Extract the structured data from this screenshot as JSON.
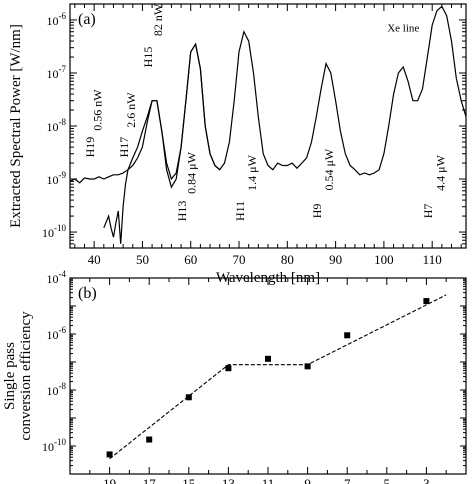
{
  "chart_data": [
    {
      "type": "line",
      "panel_label": "(a)",
      "xlabel": "Wavelength [nm]",
      "ylabel": "Extracted Spectral Power [W/nm]",
      "xlim": [
        35,
        117
      ],
      "ylim": [
        5e-11,
        2e-06
      ],
      "y_scale": "log",
      "x_ticks": [
        40,
        50,
        60,
        70,
        80,
        90,
        100,
        110
      ],
      "y_ticks": [
        {
          "value": 1e-10,
          "label": "10-10"
        },
        {
          "value": 1e-09,
          "label": "10-9"
        },
        {
          "value": 1e-08,
          "label": "10-8"
        },
        {
          "value": 1e-07,
          "label": "10-7"
        },
        {
          "value": 1e-06,
          "label": "10-6"
        }
      ],
      "grid": false,
      "series": [
        {
          "x": [
            35,
            36,
            37,
            38,
            39,
            40,
            41,
            42,
            43,
            44,
            45,
            46,
            47,
            48,
            49,
            50,
            51,
            52,
            53,
            54,
            55,
            56,
            57,
            58,
            59,
            60,
            61,
            62,
            63,
            64,
            65,
            66,
            67,
            68,
            69,
            70,
            71,
            72,
            73,
            74,
            75,
            76,
            77,
            78,
            79,
            80,
            81,
            82,
            83,
            84,
            85,
            86,
            87,
            88,
            89,
            90,
            91,
            92,
            93,
            94,
            95,
            96,
            97,
            98,
            99,
            100,
            101,
            102,
            103,
            104,
            105,
            106,
            107,
            108,
            109,
            110,
            111,
            112,
            113,
            114,
            115,
            116,
            117
          ],
          "y": [
            9e-10,
            1e-09,
            8.5e-10,
            1.05e-09,
            1e-09,
            1e-09,
            1.1e-09,
            1e-09,
            1.1e-09,
            1.2e-09,
            1.2e-09,
            1.3e-09,
            1.5e-09,
            1.8e-09,
            2.5e-09,
            4e-09,
            1.2e-08,
            3e-08,
            3e-08,
            8e-09,
            2e-09,
            1e-09,
            1.3e-09,
            4e-09,
            3e-08,
            2.5e-07,
            3.5e-07,
            1.2e-07,
            1e-08,
            3e-09,
            1.8e-09,
            1.5e-09,
            2e-09,
            5e-09,
            3e-08,
            2.5e-07,
            6e-07,
            4e-07,
            1e-07,
            1.5e-08,
            3e-09,
            1.8e-09,
            1.5e-09,
            2e-09,
            1.8e-09,
            1.8e-09,
            2e-09,
            1.6e-09,
            2e-09,
            2.5e-09,
            5e-09,
            1.5e-08,
            5e-08,
            1.5e-07,
            1e-07,
            3e-08,
            8e-09,
            3e-09,
            1.8e-09,
            1.5e-09,
            1.2e-09,
            1.3e-09,
            1.2e-09,
            1.3e-09,
            1.5e-09,
            3e-09,
            1e-08,
            4e-08,
            1e-07,
            1.3e-07,
            7e-08,
            3e-08,
            3e-08,
            5e-08,
            2e-07,
            8e-07,
            1.5e-06,
            1.8e-06,
            1.2e-06,
            4e-07,
            8e-08,
            3e-08,
            1.5e-08
          ]
        },
        {
          "x": [
            42,
            43,
            43.5,
            44,
            44.5,
            45,
            45.5,
            46,
            46.5,
            47,
            48,
            49,
            50,
            51,
            52,
            53,
            54,
            55,
            56,
            57,
            58,
            59,
            60,
            61,
            62,
            63,
            64,
            65,
            66
          ],
          "y": [
            1.2e-10,
            2e-10,
            1.2e-10,
            8e-11,
            1.5e-10,
            2.5e-10,
            6e-11,
            3e-10,
            8e-10,
            1.5e-09,
            2.5e-09,
            4e-09,
            8e-09,
            1.5e-08,
            3e-08,
            3e-08,
            8e-09,
            1.5e-09,
            7e-10,
            1e-09,
            4e-09,
            3e-08,
            2.5e-07,
            3.5e-07,
            1.2e-07,
            1e-08,
            3e-09,
            1.8e-09,
            1.5e-09
          ]
        }
      ],
      "annotations": [
        {
          "text": "H19",
          "x": 40,
          "y": 4e-09
        },
        {
          "text": "0.56 nW",
          "x": 41.5,
          "y": 2e-08
        },
        {
          "text": "H17",
          "x": 47,
          "y": 4e-09
        },
        {
          "text": "2.6 nW",
          "x": 48.5,
          "y": 2e-08
        },
        {
          "text": "H15",
          "x": 52,
          "y": 2e-07
        },
        {
          "text": "82 nW",
          "x": 54,
          "y": 1e-06
        },
        {
          "text": "H13",
          "x": 59,
          "y": 2.5e-10
        },
        {
          "text": "0.84 μW",
          "x": 61,
          "y": 1.3e-09
        },
        {
          "text": "H11",
          "x": 71,
          "y": 2.5e-10
        },
        {
          "text": "1.4 μW",
          "x": 73.5,
          "y": 1.3e-09
        },
        {
          "text": "H9",
          "x": 87,
          "y": 2.5e-10
        },
        {
          "text": "0.54 μW",
          "x": 89.5,
          "y": 1.5e-09
        },
        {
          "text": "Xe line",
          "x": 104,
          "y": 6e-07
        },
        {
          "text": "H7",
          "x": 110,
          "y": 2.5e-10
        },
        {
          "text": "4.4 μW",
          "x": 112.5,
          "y": 1.3e-09
        }
      ]
    },
    {
      "type": "scatter",
      "panel_label": "(b)",
      "xlabel": "Harmonic order",
      "ylabel": "Single pass conversion efficiency",
      "x_reversed": true,
      "xlim": [
        21,
        1
      ],
      "ylim": [
        1e-11,
        0.0001
      ],
      "y_scale": "log",
      "x_ticks": [
        19,
        17,
        15,
        13,
        11,
        9,
        7,
        5,
        3
      ],
      "y_ticks": [
        {
          "value": 1e-10,
          "label": "10-10"
        },
        {
          "value": 1e-08,
          "label": "10-8"
        },
        {
          "value": 1e-06,
          "label": "10-6"
        },
        {
          "value": 0.0001,
          "label": "10-4"
        }
      ],
      "grid": false,
      "points": {
        "x": [
          19,
          17,
          15,
          13,
          11,
          9,
          7,
          3
        ],
        "y": [
          5e-11,
          1.7e-10,
          5.5e-09,
          6e-08,
          1.3e-07,
          7e-08,
          9e-07,
          1.5e-05
        ]
      },
      "fit_line": {
        "x": [
          19,
          13,
          9,
          2
        ],
        "y": [
          3.5e-11,
          8e-08,
          8e-08,
          2.5e-05
        ]
      }
    }
  ]
}
